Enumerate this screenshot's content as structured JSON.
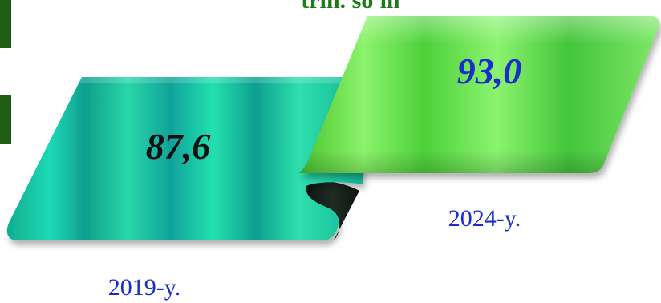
{
  "chart_data": {
    "type": "bar",
    "title": "trln. so'm",
    "categories": [
      "2019-y.",
      "2024-y."
    ],
    "values": [
      87.6,
      93.0
    ],
    "value_labels": [
      "87,6",
      "93,0"
    ]
  },
  "colors": {
    "ribbon_2019": "#14c9a6",
    "ribbon_2024": "#5ee04a",
    "fold_shadow": "#162018",
    "value_2019": "#111111",
    "value_2024": "#1a2fc9",
    "year_text": "#1a2fc9",
    "title_text": "#1f7a1a",
    "left_tab": "#1f5e12"
  }
}
